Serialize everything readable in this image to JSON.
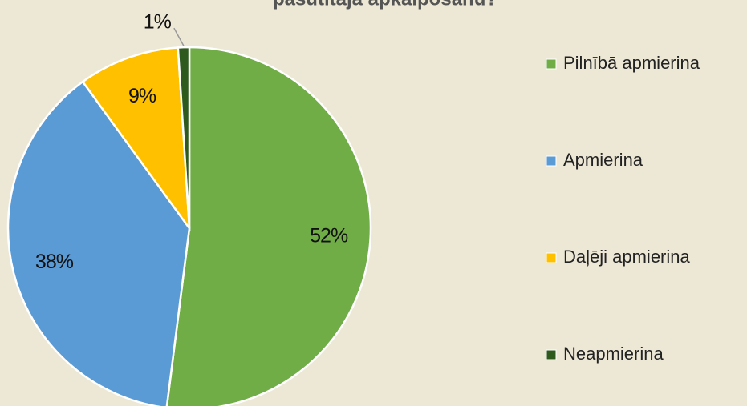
{
  "chart_data": {
    "type": "pie",
    "title": "pasūtītāja apkalpošanu?",
    "categories": [
      "Pilnībā apmierina",
      "Apmierina",
      "Daļēji apmierina",
      "Neapmierina"
    ],
    "values": [
      52,
      38,
      9,
      1
    ],
    "value_labels": [
      "52%",
      "38%",
      "9%",
      "1%"
    ],
    "colors": [
      "#70ad47",
      "#5b9bd5",
      "#ffc000",
      "#2f5a1e"
    ],
    "legend": "right"
  }
}
